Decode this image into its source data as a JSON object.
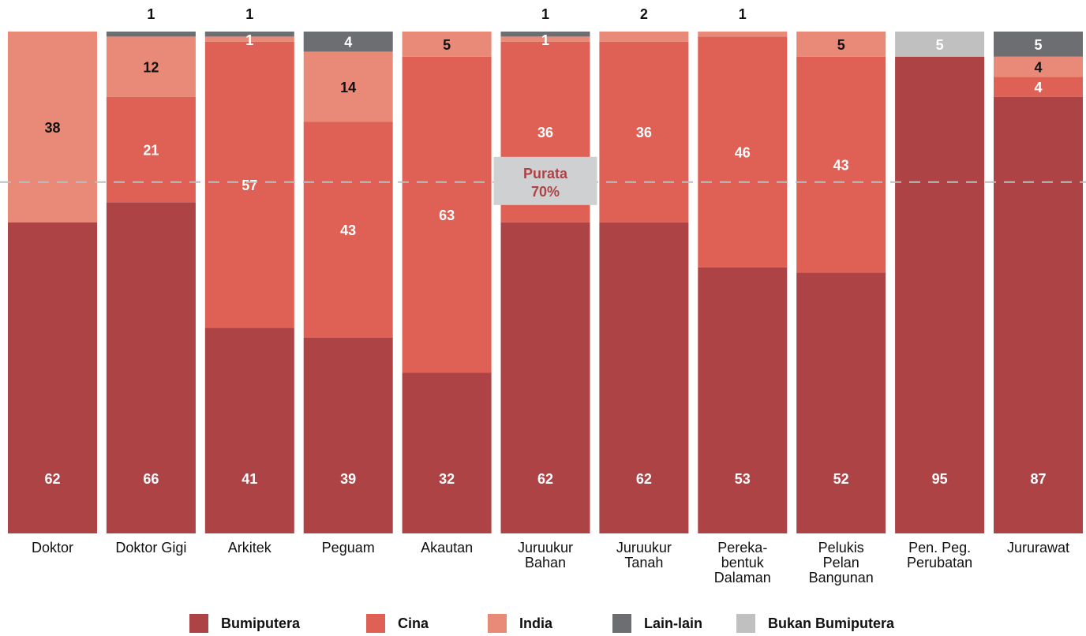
{
  "chart_data": {
    "type": "bar",
    "stacked": true,
    "percent": true,
    "categories": [
      [
        "Doktor"
      ],
      [
        "Doktor Gigi"
      ],
      [
        "Arkitek"
      ],
      [
        "Peguam"
      ],
      [
        "Akautan"
      ],
      [
        "Juruukur",
        "Bahan"
      ],
      [
        "Juruukur",
        "Tanah"
      ],
      [
        "Pereka-",
        "bentuk",
        "Dalaman"
      ],
      [
        "Pelukis",
        "Pelan",
        "Bangunan"
      ],
      [
        "Pen. Peg.",
        "Perubatan"
      ],
      [
        "Jururawat"
      ]
    ],
    "series": [
      {
        "name": "Bumiputera",
        "color": "#ad4345",
        "values": [
          62,
          66,
          41,
          39,
          32,
          62,
          62,
          53,
          52,
          95,
          87
        ]
      },
      {
        "name": "Cina",
        "color": "#df6156",
        "values": [
          null,
          21,
          57,
          43,
          63,
          36,
          36,
          46,
          43,
          null,
          4
        ]
      },
      {
        "name": "India",
        "color": "#e88a77",
        "values": [
          38,
          12,
          1,
          14,
          5,
          1,
          2,
          1,
          5,
          null,
          4
        ]
      },
      {
        "name": "Lain-lain",
        "color": "#6d6e71",
        "values": [
          null,
          1,
          1,
          4,
          null,
          1,
          null,
          null,
          null,
          null,
          5
        ]
      },
      {
        "name": "Bukan Bumiputera",
        "color": "#c0c0c0",
        "values": [
          null,
          null,
          null,
          null,
          null,
          null,
          null,
          null,
          null,
          5,
          null
        ]
      }
    ],
    "ylim": [
      0,
      100
    ],
    "reference_line": {
      "value": 70,
      "label_line1": "Purata",
      "label_line2": "70%"
    },
    "legend_position": "bottom",
    "grid": false,
    "label_color_dark": "#111111",
    "label_color_light": "#ffffff",
    "ref_label_color": "#ad4345",
    "ref_box_color": "#cfd0d2"
  }
}
